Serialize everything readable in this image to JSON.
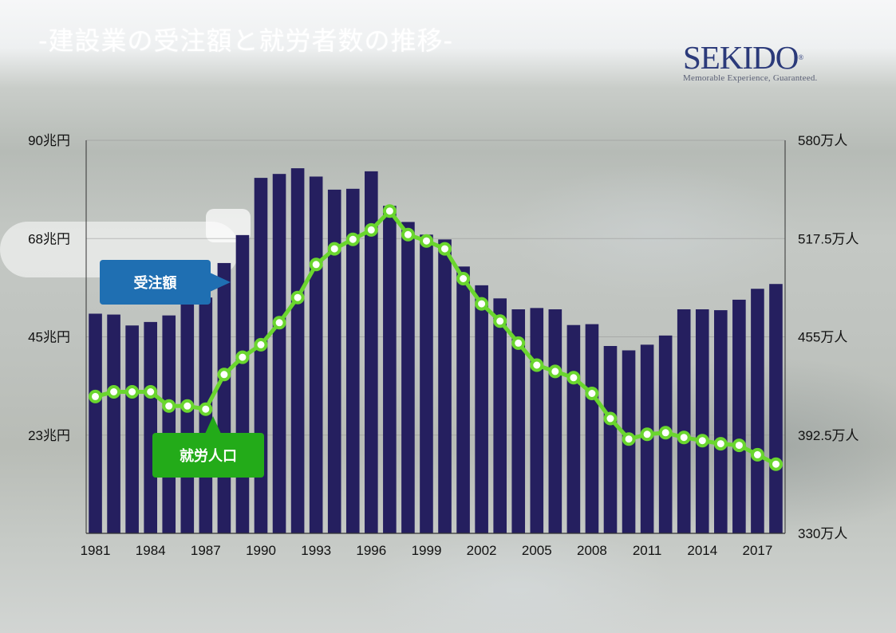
{
  "title": "-建設業の受注額と就労者数の推移-",
  "logo": {
    "name": "SEKIDO",
    "tagline": "Memorable Experience, Guaranteed."
  },
  "callouts": {
    "orders": "受注額",
    "workers": "就労人口"
  },
  "colors": {
    "bars": "#251f5f",
    "line": "#6ad62e",
    "orders_callout": "#1f6fb2",
    "workers_callout": "#23ab19"
  },
  "chart_data": {
    "type": "bar",
    "x": [
      1981,
      1982,
      1983,
      1984,
      1985,
      1986,
      1987,
      1988,
      1989,
      1990,
      1991,
      1992,
      1993,
      1994,
      1995,
      1996,
      1997,
      1998,
      1999,
      2000,
      2001,
      2002,
      2003,
      2004,
      2005,
      2006,
      2007,
      2008,
      2009,
      2010,
      2011,
      2012,
      2013,
      2014,
      2015,
      2016,
      2017,
      2018
    ],
    "x_tick_labels": [
      "1981",
      "1984",
      "1987",
      "1990",
      "1993",
      "1996",
      "1999",
      "2002",
      "2005",
      "2008",
      "2011",
      "2014",
      "2017"
    ],
    "series": [
      {
        "name": "受注額",
        "type": "bar",
        "axis": "left",
        "values": [
          50.3,
          50.1,
          47.6,
          48.4,
          49.9,
          53.2,
          54.0,
          61.9,
          68.3,
          81.4,
          82.3,
          83.6,
          81.7,
          78.7,
          78.9,
          82.9,
          75.0,
          71.3,
          68.4,
          67.3,
          61.1,
          56.8,
          53.8,
          51.3,
          51.6,
          51.3,
          47.7,
          47.9,
          42.9,
          41.9,
          43.2,
          45.3,
          51.3,
          51.3,
          51.1,
          53.5,
          56.0,
          57.1
        ]
      },
      {
        "name": "就労人口",
        "type": "line",
        "axis": "right",
        "values": [
          417,
          420,
          420,
          420,
          411,
          411,
          409,
          431,
          442,
          450,
          464,
          480,
          501,
          511,
          517,
          523,
          535,
          520,
          516,
          511,
          492,
          476,
          465,
          451,
          437,
          433,
          429,
          419,
          403,
          390,
          393,
          394,
          391,
          389,
          387,
          386,
          380,
          374
        ]
      }
    ],
    "y_left": {
      "ticks": [
        "90兆円",
        "68兆円",
        "45兆円",
        "23兆円"
      ],
      "ylim": [
        0,
        90
      ]
    },
    "y_right": {
      "ticks": [
        "580万人",
        "517.5万人",
        "455万人",
        "392.5万人",
        "330万人"
      ],
      "ylim": [
        330,
        580
      ]
    },
    "grid": true
  }
}
